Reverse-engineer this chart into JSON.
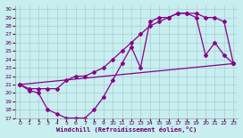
{
  "bg_color": "#c8eef0",
  "line_color": "#880088",
  "grid_color": "#aacccc",
  "xlabel": "Windchill (Refroidissement éolien,°C)",
  "xlabel_color": "#660066",
  "tick_color": "#550055",
  "xlim": [
    -0.5,
    23.5
  ],
  "ylim": [
    17,
    30.5
  ],
  "yticks": [
    17,
    18,
    19,
    20,
    21,
    22,
    23,
    24,
    25,
    26,
    27,
    28,
    29,
    30
  ],
  "xticks": [
    0,
    1,
    2,
    3,
    4,
    5,
    6,
    7,
    8,
    9,
    10,
    11,
    12,
    13,
    14,
    15,
    16,
    17,
    18,
    19,
    20,
    21,
    22,
    23
  ],
  "curve1_x": [
    0,
    1,
    2,
    3,
    4,
    5,
    6,
    7,
    8,
    9,
    10,
    11,
    12,
    13,
    14,
    15,
    16,
    17,
    18,
    19,
    20,
    21,
    22,
    23
  ],
  "curve1_y": [
    21.0,
    20.3,
    20.0,
    18.0,
    17.5,
    17.0,
    17.0,
    17.0,
    18.0,
    19.5,
    21.5,
    23.5,
    25.5,
    23.0,
    28.5,
    29.0,
    29.0,
    29.5,
    29.5,
    29.0,
    24.5,
    26.0,
    24.5,
    23.5
  ],
  "curve2_x": [
    0,
    1,
    2,
    3,
    4,
    5,
    6,
    7,
    8,
    9,
    10,
    11,
    12,
    13,
    14,
    15,
    16,
    17,
    18,
    19,
    20,
    21,
    22,
    23
  ],
  "curve2_y": [
    21.0,
    20.5,
    20.5,
    20.5,
    20.5,
    21.5,
    22.0,
    22.0,
    22.5,
    23.0,
    24.0,
    25.0,
    26.0,
    27.0,
    28.0,
    28.5,
    29.0,
    29.5,
    29.5,
    29.5,
    29.0,
    29.0,
    28.5,
    23.5
  ],
  "line3_x": [
    0,
    23
  ],
  "line3_y": [
    21.0,
    23.5
  ],
  "marker": "D",
  "markersize": 2,
  "linewidth": 0.9
}
